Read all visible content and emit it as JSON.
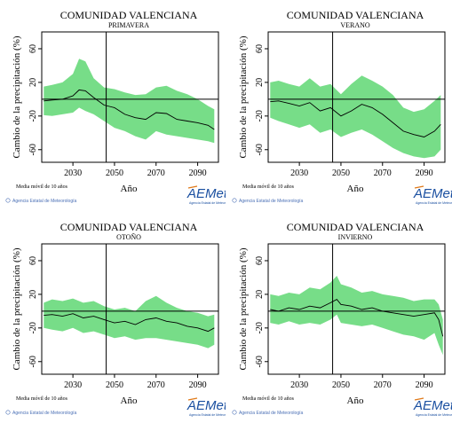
{
  "chart_data": [
    {
      "type": "area",
      "title": "COMUNIDAD VALENCIANA",
      "subtitle": "PRIMAVERA",
      "ylabel": "Cambio de la precipitación (%)",
      "xlabel": "Año",
      "xlim": [
        2015,
        2100
      ],
      "ylim": [
        -75,
        80
      ],
      "xticks": [
        2030,
        2050,
        2070,
        2090
      ],
      "yticks": [
        60,
        20,
        -20,
        -60
      ],
      "reference": {
        "x": 2046,
        "y": 0
      },
      "x": [
        2016,
        2020,
        2025,
        2030,
        2033,
        2036,
        2040,
        2045,
        2050,
        2055,
        2060,
        2065,
        2070,
        2075,
        2080,
        2085,
        2090,
        2095,
        2098
      ],
      "series": [
        {
          "role": "mean",
          "values": [
            -2,
            -1,
            0,
            4,
            11,
            10,
            2,
            -7,
            -10,
            -18,
            -22,
            -24,
            -16,
            -17,
            -24,
            -26,
            -28,
            -31,
            -36
          ]
        },
        {
          "role": "upper",
          "values": [
            15,
            17,
            20,
            30,
            48,
            45,
            25,
            14,
            12,
            8,
            5,
            6,
            14,
            16,
            10,
            6,
            0,
            -8,
            -12
          ]
        },
        {
          "role": "lower",
          "values": [
            -19,
            -20,
            -18,
            -16,
            -10,
            -14,
            -18,
            -26,
            -34,
            -38,
            -44,
            -48,
            -38,
            -42,
            -44,
            -46,
            -48,
            -50,
            -52
          ]
        }
      ],
      "note": "Media móvil de 10 años",
      "credit": "Agencia Estatal de Meteorología",
      "colors": {
        "band": "#77dd88",
        "line": "#000000"
      }
    },
    {
      "type": "area",
      "title": "COMUNIDAD VALENCIANA",
      "subtitle": "VERANO",
      "ylabel": "Cambio de la precipitación (%)",
      "xlabel": "Año",
      "xlim": [
        2015,
        2100
      ],
      "ylim": [
        -75,
        80
      ],
      "xticks": [
        2030,
        2050,
        2070,
        2090
      ],
      "yticks": [
        60,
        20,
        -20,
        -60
      ],
      "reference": {
        "x": 2046,
        "y": 0
      },
      "x": [
        2016,
        2020,
        2025,
        2030,
        2035,
        2040,
        2045,
        2050,
        2055,
        2060,
        2065,
        2070,
        2075,
        2080,
        2085,
        2090,
        2095,
        2098
      ],
      "series": [
        {
          "role": "mean",
          "values": [
            -3,
            -2,
            -5,
            -8,
            -4,
            -14,
            -10,
            -20,
            -14,
            -6,
            -10,
            -18,
            -28,
            -38,
            -42,
            -45,
            -38,
            -30
          ]
        },
        {
          "role": "upper",
          "values": [
            20,
            22,
            18,
            15,
            25,
            15,
            18,
            6,
            18,
            28,
            22,
            15,
            5,
            -10,
            -15,
            -12,
            -2,
            5
          ]
        },
        {
          "role": "lower",
          "values": [
            -22,
            -26,
            -30,
            -34,
            -30,
            -40,
            -36,
            -45,
            -40,
            -36,
            -42,
            -50,
            -58,
            -64,
            -68,
            -70,
            -68,
            -60
          ]
        }
      ],
      "note": "Media móvil de 10 años",
      "credit": "Agencia Estatal de Meteorología",
      "colors": {
        "band": "#77dd88",
        "line": "#000000"
      }
    },
    {
      "type": "area",
      "title": "COMUNIDAD VALENCIANA",
      "subtitle": "OTOÑO",
      "ylabel": "Cambio de la precipitación (%)",
      "xlabel": "Año",
      "xlim": [
        2015,
        2100
      ],
      "ylim": [
        -75,
        80
      ],
      "xticks": [
        2030,
        2050,
        2070,
        2090
      ],
      "yticks": [
        60,
        20,
        -20,
        -60
      ],
      "reference": {
        "x": 2046,
        "y": 0
      },
      "x": [
        2016,
        2020,
        2025,
        2030,
        2035,
        2040,
        2045,
        2050,
        2055,
        2060,
        2065,
        2070,
        2075,
        2080,
        2085,
        2090,
        2095,
        2098
      ],
      "series": [
        {
          "role": "mean",
          "values": [
            -5,
            -4,
            -6,
            -3,
            -8,
            -6,
            -10,
            -14,
            -12,
            -16,
            -10,
            -8,
            -12,
            -14,
            -18,
            -20,
            -24,
            -20
          ]
        },
        {
          "role": "upper",
          "values": [
            10,
            14,
            12,
            15,
            10,
            12,
            6,
            2,
            4,
            0,
            12,
            18,
            10,
            4,
            0,
            -2,
            -6,
            -4
          ]
        },
        {
          "role": "lower",
          "values": [
            -20,
            -22,
            -24,
            -20,
            -26,
            -24,
            -28,
            -32,
            -30,
            -34,
            -32,
            -32,
            -34,
            -36,
            -38,
            -40,
            -44,
            -40
          ]
        }
      ],
      "note": "Media móvil de 10 años",
      "credit": "Agencia Estatal de Meteorología",
      "colors": {
        "band": "#77dd88",
        "line": "#000000"
      }
    },
    {
      "type": "area",
      "title": "COMUNIDAD VALENCIANA",
      "subtitle": "INVIERNO",
      "ylabel": "Cambio de la precipitación (%)",
      "xlabel": "Año",
      "xlim": [
        2015,
        2100
      ],
      "ylim": [
        -75,
        80
      ],
      "xticks": [
        2030,
        2050,
        2070,
        2090
      ],
      "yticks": [
        60,
        20,
        -20,
        -60
      ],
      "reference": {
        "x": 2046,
        "y": 0
      },
      "x": [
        2016,
        2020,
        2025,
        2030,
        2035,
        2040,
        2045,
        2048,
        2050,
        2055,
        2060,
        2065,
        2070,
        2075,
        2080,
        2085,
        2090,
        2095,
        2097,
        2099
      ],
      "series": [
        {
          "role": "mean",
          "values": [
            2,
            0,
            4,
            2,
            6,
            4,
            10,
            14,
            8,
            6,
            2,
            4,
            0,
            -2,
            -4,
            -6,
            -4,
            -2,
            -10,
            -30
          ]
        },
        {
          "role": "upper",
          "values": [
            20,
            18,
            22,
            20,
            28,
            26,
            34,
            42,
            32,
            28,
            22,
            24,
            20,
            18,
            16,
            12,
            14,
            14,
            8,
            -10
          ]
        },
        {
          "role": "lower",
          "values": [
            -14,
            -16,
            -12,
            -16,
            -14,
            -16,
            -10,
            -4,
            -14,
            -16,
            -18,
            -16,
            -20,
            -24,
            -28,
            -30,
            -34,
            -26,
            -40,
            -52
          ]
        }
      ],
      "note": "Media móvil de 10 años",
      "credit": "Agencia Estatal de Meteorología",
      "colors": {
        "band": "#77dd88",
        "line": "#000000"
      }
    }
  ],
  "logo": {
    "text": "AEMet",
    "subtext": "Agencia Estatal de Meteorología"
  }
}
